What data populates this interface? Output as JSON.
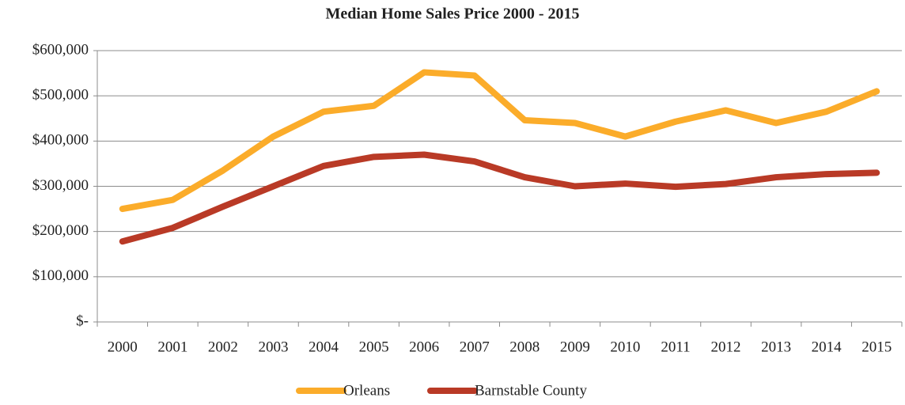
{
  "chart_data": {
    "type": "line",
    "title": "Median Home Sales Price 2000 - 2015",
    "categories": [
      "2000",
      "2001",
      "2002",
      "2003",
      "2004",
      "2005",
      "2006",
      "2007",
      "2008",
      "2009",
      "2010",
      "2011",
      "2012",
      "2013",
      "2014",
      "2015"
    ],
    "series": [
      {
        "name": "Orleans",
        "color": "#fbac2a",
        "values": [
          250000,
          270000,
          335000,
          410000,
          465000,
          478000,
          552000,
          545000,
          446000,
          440000,
          410000,
          443000,
          468000,
          440000,
          465000,
          510000
        ]
      },
      {
        "name": "Barnstable County",
        "color": "#b93a26",
        "values": [
          178000,
          208000,
          255000,
          300000,
          345000,
          365000,
          370000,
          355000,
          320000,
          300000,
          306000,
          299000,
          305000,
          320000,
          327000,
          330000
        ]
      }
    ],
    "ylim": [
      0,
      600000
    ],
    "yticks": [
      {
        "value": 0,
        "label": "$-"
      },
      {
        "value": 100000,
        "label": "$100,000"
      },
      {
        "value": 200000,
        "label": "$200,000"
      },
      {
        "value": 300000,
        "label": "$300,000"
      },
      {
        "value": 400000,
        "label": "$400,000"
      },
      {
        "value": 500000,
        "label": "$500,000"
      },
      {
        "value": 600000,
        "label": "$600,000"
      }
    ],
    "grid": true,
    "legend": "bottom"
  }
}
